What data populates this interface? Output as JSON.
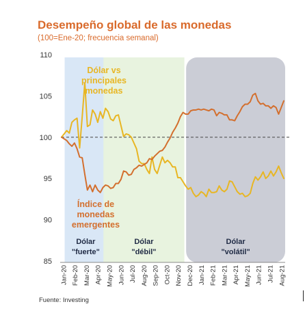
{
  "header": {
    "title": "Desempeño global de las monedas",
    "subtitle": "(100=Ene-20; frecuencia semanal)"
  },
  "footer": {
    "source": "Fuente: Investing"
  },
  "chart_data": {
    "type": "line",
    "title": "Desempeño global de las monedas",
    "subtitle": "(100=Ene-20; frecuencia semanal)",
    "xlabel": "",
    "ylabel": "",
    "ylim": [
      85,
      110
    ],
    "yticks": [
      85,
      90,
      95,
      100,
      105,
      110
    ],
    "x_tick_labels": [
      "Jan-20",
      "Mar-20",
      "May-20",
      "Jul-20",
      "Sep-20",
      "Nov-20",
      "Jan-21",
      "Mar-21",
      "May-21",
      "Jul-21",
      "Aug-21"
    ],
    "x_tick_labels_all": [
      "Jan-20",
      "Feb-20",
      "Mar-20",
      "Apr-20",
      "May-20",
      "Jun-20",
      "Jul-20",
      "Aug-20",
      "Sep-20",
      "Oct-20",
      "Nov-20",
      "Dec-20",
      "Jan-21",
      "Feb-21",
      "Mar-21",
      "Apr-21",
      "May-21",
      "Jun-21",
      "Jul-21",
      "Aug-21"
    ],
    "x_tick_index": [
      0,
      1,
      2,
      3,
      4,
      5,
      6,
      7,
      8,
      9,
      10,
      11,
      12,
      13,
      14,
      15,
      16,
      17,
      18,
      19
    ],
    "reference_line": 100,
    "grid": false,
    "series": [
      {
        "name": "Dólar vs principales monedas",
        "color": "#e8b623",
        "values": [
          100,
          100.4,
          100.8,
          100.5,
          101.8,
          102.1,
          102.3,
          98.7,
          102.5,
          106.6,
          101.3,
          101.5,
          103.3,
          102.8,
          101.8,
          103.1,
          102.3,
          103.5,
          103.1,
          102.2,
          102.0,
          102.6,
          102.7,
          101.4,
          100.1,
          100.4,
          100.3,
          100.0,
          99.3,
          98.6,
          97.1,
          96.8,
          96.8,
          96.1,
          95.6,
          97.6,
          96.1,
          95.6,
          96.6,
          97.6,
          96.9,
          97.2,
          96.9,
          96.4,
          96.4,
          95.1,
          95.1,
          94.6,
          94.1,
          93.7,
          93.9,
          93.2,
          92.8,
          93.0,
          93.4,
          93.2,
          92.8,
          93.7,
          93.3,
          93.3,
          93.4,
          94.1,
          93.6,
          93.4,
          93.7,
          94.7,
          94.6,
          94.0,
          93.4,
          93.1,
          93.2,
          92.8,
          92.9,
          93.2,
          94.4,
          95.2,
          94.8,
          95.2,
          95.8,
          95.0,
          95.3,
          95.9,
          95.3,
          95.8,
          96.5,
          95.7,
          95.0
        ]
      },
      {
        "name": "Índice de monedas emergentes",
        "color": "#d36f2e",
        "values": [
          100,
          99.8,
          99.6,
          99.2,
          98.9,
          99.3,
          98.6,
          97.6,
          97.5,
          95.5,
          93.6,
          94.2,
          93.4,
          94.2,
          93.6,
          93.3,
          93.9,
          94.2,
          94.1,
          93.8,
          93.9,
          94.4,
          94.4,
          94.9,
          95.9,
          95.8,
          95.4,
          95.5,
          96.1,
          96.3,
          96.6,
          96.5,
          96.7,
          96.9,
          97.4,
          97.3,
          97.7,
          98.0,
          98.3,
          98.4,
          98.8,
          99.4,
          99.9,
          100.6,
          101.1,
          101.7,
          102.5,
          103.0,
          102.8,
          102.8,
          103.2,
          103.3,
          103.3,
          103.4,
          103.3,
          103.4,
          103.3,
          103.2,
          103.4,
          103.3,
          102.6,
          103.0,
          102.9,
          102.7,
          102.7,
          102.1,
          102.1,
          102.0,
          102.6,
          103.1,
          103.7,
          104.0,
          104.0,
          104.3,
          105.1,
          105.3,
          104.4,
          104.0,
          104.1,
          103.8,
          103.8,
          103.5,
          103.8,
          103.6,
          102.8,
          103.6,
          104.4
        ]
      }
    ],
    "annotations": [
      {
        "text": "Dólar vs\nprincipales\nmonedas",
        "color": "#e8b623"
      },
      {
        "text": "Índice de\nmonedas\nemergentes",
        "color": "#d36f2e"
      }
    ],
    "periods": [
      {
        "label_line1": "Dólar",
        "label_line2": "\"fuerte\"",
        "from_week": 2,
        "to_week": 17,
        "color": "#d9e7f6"
      },
      {
        "label_line1": "Dólar",
        "label_line2": "\"débil\"",
        "from_week": 17,
        "to_week": 47,
        "color": "#e8f3df"
      },
      {
        "label_line1": "Dólar",
        "label_line2": "\"volátil\"",
        "from_week": 49,
        "to_week": 86,
        "color": "#cbcdd6"
      }
    ]
  }
}
